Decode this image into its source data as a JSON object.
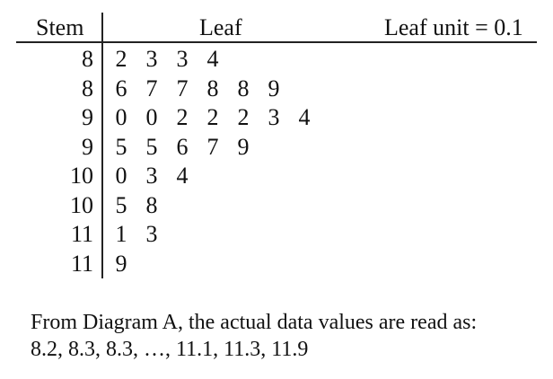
{
  "header": {
    "stem": "Stem",
    "leaf": "Leaf",
    "leaf_unit": "Leaf unit = 0.1"
  },
  "rows": [
    {
      "stem": "8",
      "leaves": [
        "2",
        "3",
        "3",
        "4"
      ]
    },
    {
      "stem": "8",
      "leaves": [
        "6",
        "7",
        "7",
        "8",
        "8",
        "9"
      ]
    },
    {
      "stem": "9",
      "leaves": [
        "0",
        "0",
        "2",
        "2",
        "2",
        "3",
        "4"
      ]
    },
    {
      "stem": "9",
      "leaves": [
        "5",
        "5",
        "6",
        "7",
        "9"
      ]
    },
    {
      "stem": "10",
      "leaves": [
        "0",
        "3",
        "4"
      ]
    },
    {
      "stem": "10",
      "leaves": [
        "5",
        "8"
      ]
    },
    {
      "stem": "11",
      "leaves": [
        "1",
        "3"
      ]
    },
    {
      "stem": "11",
      "leaves": [
        "9"
      ]
    }
  ],
  "caption": {
    "line1": "From Diagram A, the actual data values are read as:",
    "line2": "8.2, 8.3, 8.3, …, 11.1, 11.3, 11.9"
  }
}
